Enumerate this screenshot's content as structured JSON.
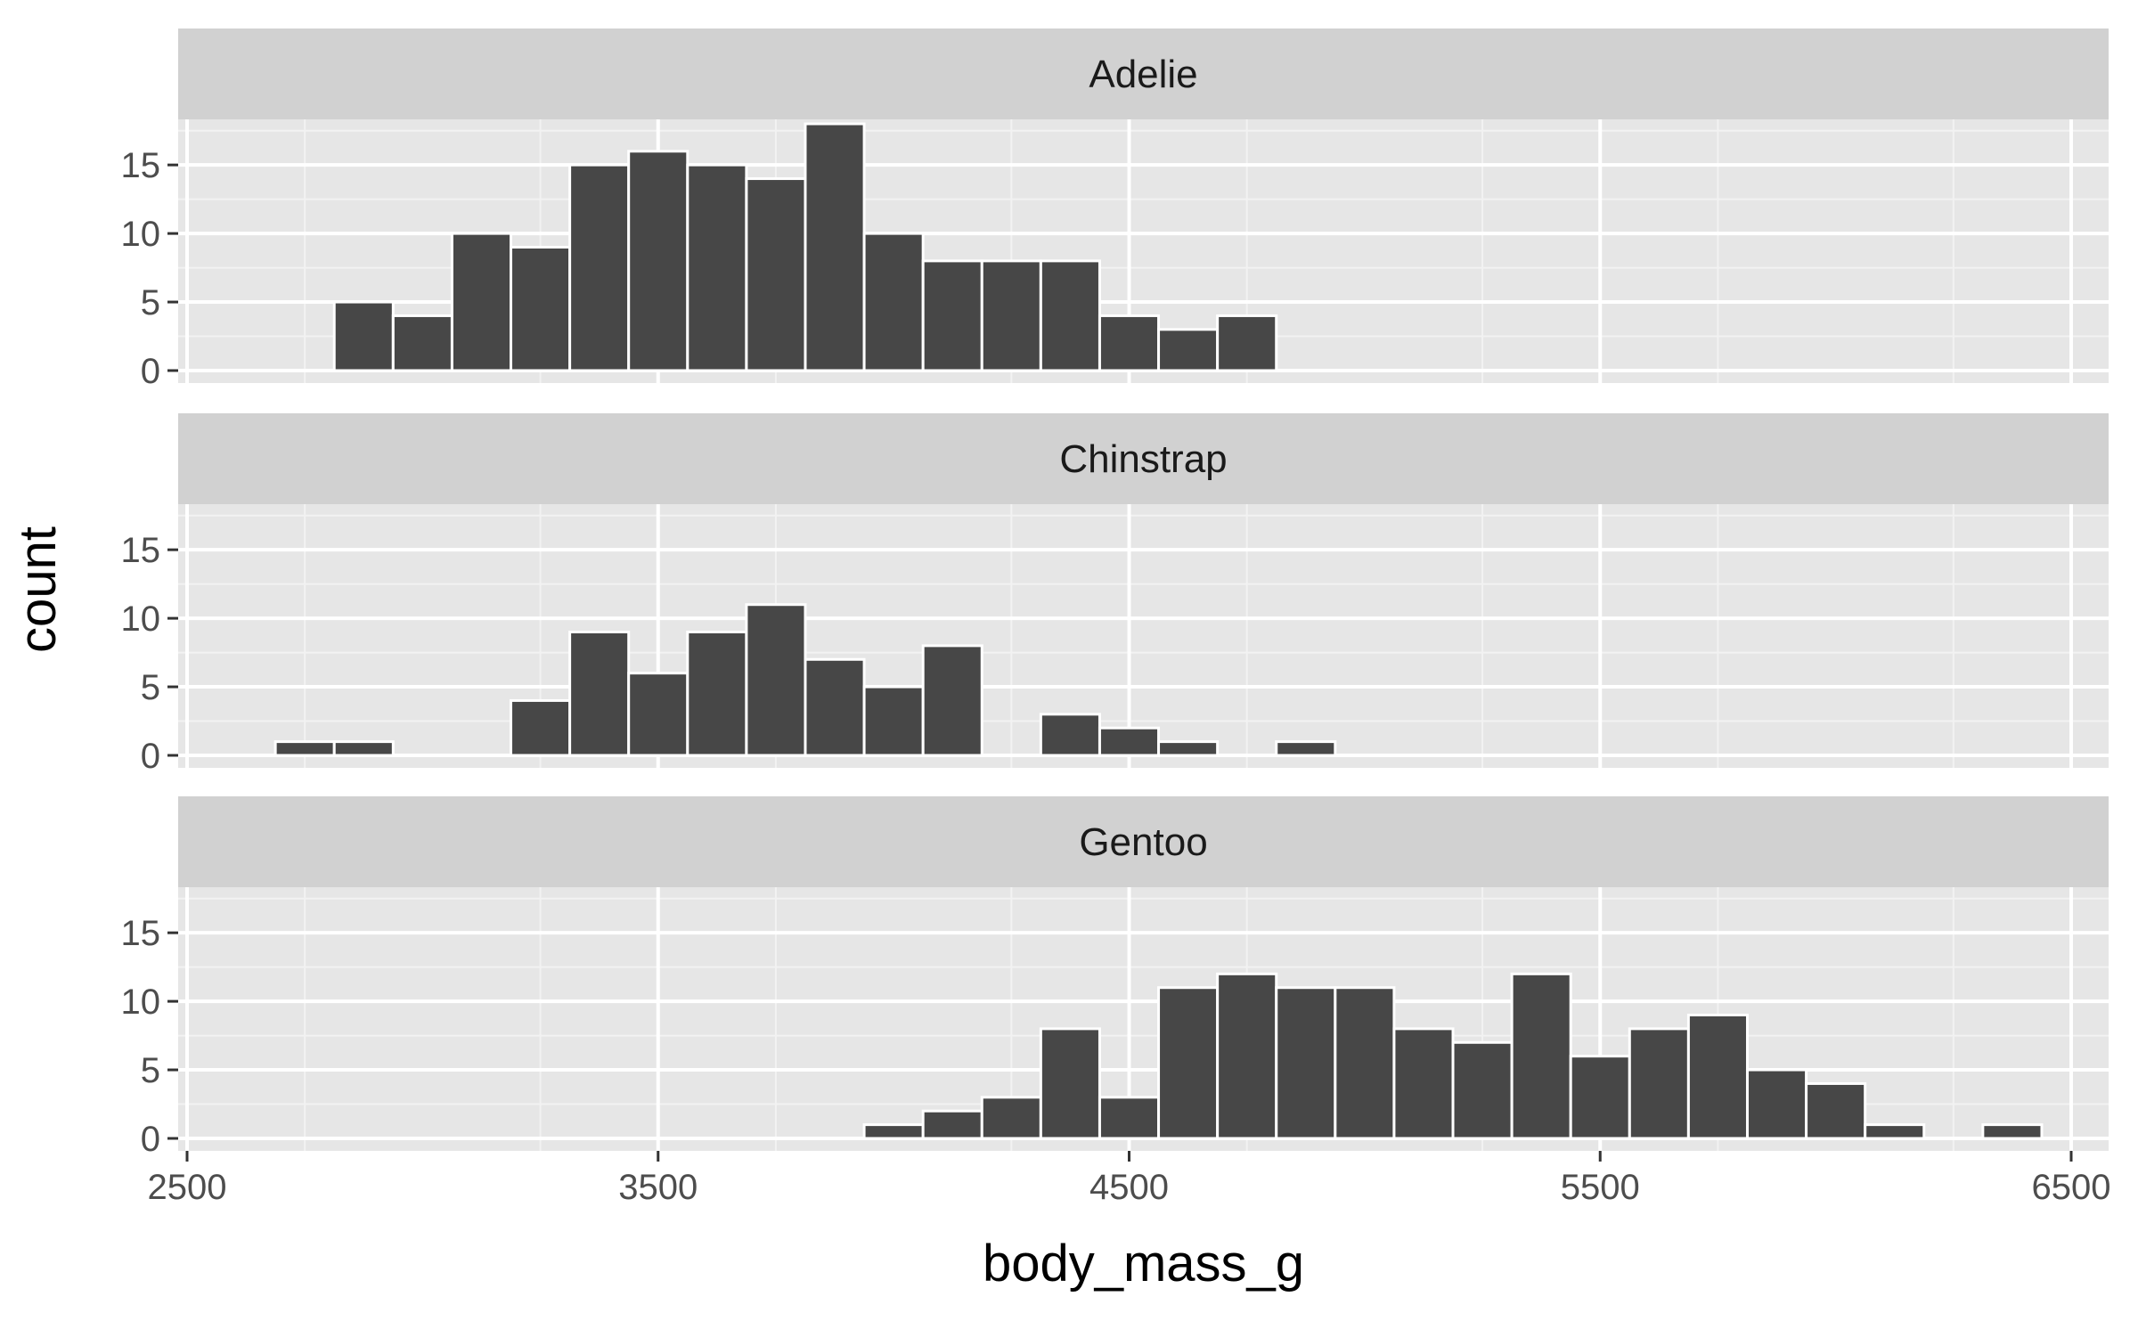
{
  "chart_data": {
    "type": "bar",
    "subtype": "faceted histogram",
    "xlabel": "body_mass_g",
    "ylabel": "count",
    "xlim": [
      2500,
      6500
    ],
    "ylim": [
      0,
      18
    ],
    "x_ticks": [
      2500,
      3500,
      4500,
      5500,
      6500
    ],
    "y_ticks": [
      0,
      5,
      10,
      15
    ],
    "bin_width": 125,
    "bar_color": "#474747",
    "bar_outline": "#ffffff",
    "panel_background": "#e6e6e6",
    "strip_background": "#d1d1d1",
    "grid": true,
    "legend": "none",
    "facets": [
      {
        "name": "Adelie",
        "bins": [
          {
            "x": 2875,
            "count": 5
          },
          {
            "x": 3000,
            "count": 4
          },
          {
            "x": 3125,
            "count": 10
          },
          {
            "x": 3250,
            "count": 9
          },
          {
            "x": 3375,
            "count": 15
          },
          {
            "x": 3500,
            "count": 16
          },
          {
            "x": 3625,
            "count": 15
          },
          {
            "x": 3750,
            "count": 14
          },
          {
            "x": 3875,
            "count": 18
          },
          {
            "x": 4000,
            "count": 10
          },
          {
            "x": 4125,
            "count": 8
          },
          {
            "x": 4250,
            "count": 8
          },
          {
            "x": 4375,
            "count": 8
          },
          {
            "x": 4500,
            "count": 4
          },
          {
            "x": 4625,
            "count": 3
          },
          {
            "x": 4750,
            "count": 4
          }
        ]
      },
      {
        "name": "Chinstrap",
        "bins": [
          {
            "x": 2750,
            "count": 1
          },
          {
            "x": 2875,
            "count": 1
          },
          {
            "x": 3250,
            "count": 4
          },
          {
            "x": 3375,
            "count": 9
          },
          {
            "x": 3500,
            "count": 6
          },
          {
            "x": 3625,
            "count": 9
          },
          {
            "x": 3750,
            "count": 11
          },
          {
            "x": 3875,
            "count": 7
          },
          {
            "x": 4000,
            "count": 5
          },
          {
            "x": 4125,
            "count": 8
          },
          {
            "x": 4375,
            "count": 3
          },
          {
            "x": 4500,
            "count": 2
          },
          {
            "x": 4625,
            "count": 1
          },
          {
            "x": 4875,
            "count": 1
          }
        ]
      },
      {
        "name": "Gentoo",
        "bins": [
          {
            "x": 4000,
            "count": 1
          },
          {
            "x": 4125,
            "count": 2
          },
          {
            "x": 4250,
            "count": 3
          },
          {
            "x": 4375,
            "count": 8
          },
          {
            "x": 4500,
            "count": 3
          },
          {
            "x": 4625,
            "count": 11
          },
          {
            "x": 4750,
            "count": 12
          },
          {
            "x": 4875,
            "count": 11
          },
          {
            "x": 5000,
            "count": 11
          },
          {
            "x": 5125,
            "count": 8
          },
          {
            "x": 5250,
            "count": 7
          },
          {
            "x": 5375,
            "count": 12
          },
          {
            "x": 5500,
            "count": 6
          },
          {
            "x": 5625,
            "count": 8
          },
          {
            "x": 5750,
            "count": 9
          },
          {
            "x": 5875,
            "count": 5
          },
          {
            "x": 6000,
            "count": 4
          },
          {
            "x": 6125,
            "count": 1
          },
          {
            "x": 6375,
            "count": 1
          }
        ]
      }
    ]
  }
}
